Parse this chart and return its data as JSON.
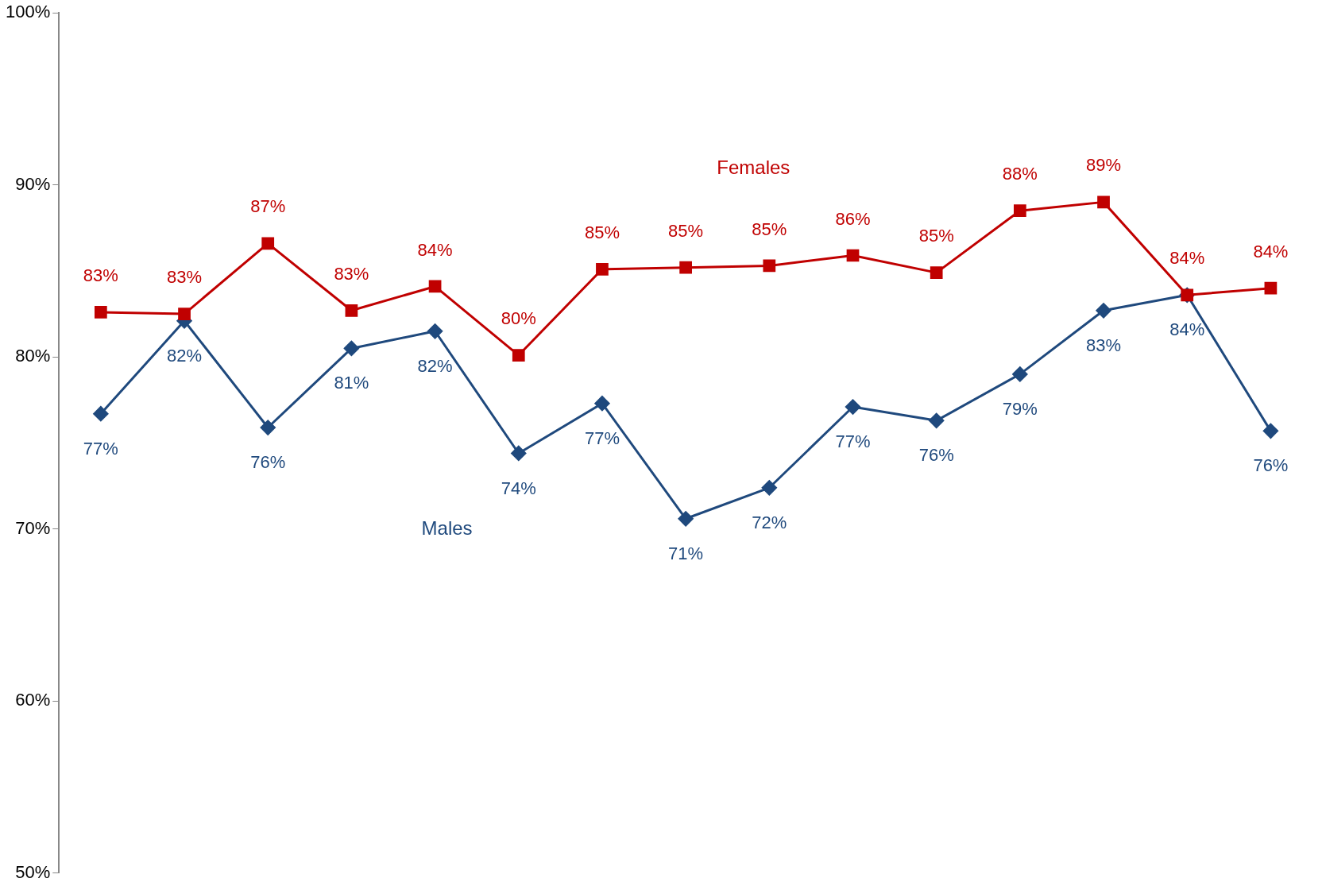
{
  "chart_data": {
    "type": "line",
    "categories": [
      null,
      null,
      null,
      null,
      null,
      null,
      null,
      null,
      null,
      null,
      null,
      null,
      null,
      null,
      null
    ],
    "series": [
      {
        "name": "Females",
        "color": "#c00000",
        "marker": "square",
        "values": [
          82.6,
          82.5,
          86.6,
          82.7,
          84.1,
          80.1,
          85.1,
          85.2,
          85.3,
          85.9,
          84.9,
          88.5,
          89.0,
          83.6,
          84.0
        ],
        "value_labels": [
          "83%",
          "83%",
          "87%",
          "83%",
          "84%",
          "80%",
          "85%",
          "85%",
          "85%",
          "86%",
          "85%",
          "88%",
          "89%",
          "84%",
          "84%"
        ]
      },
      {
        "name": "Males",
        "color": "#1f497d",
        "marker": "diamond",
        "values": [
          76.7,
          82.1,
          75.9,
          80.5,
          81.5,
          74.4,
          77.3,
          70.6,
          72.4,
          77.1,
          76.3,
          79.0,
          82.7,
          83.6,
          75.7
        ],
        "value_labels": [
          "77%",
          "82%",
          "76%",
          "81%",
          "82%",
          "74%",
          "77%",
          "71%",
          "72%",
          "77%",
          "76%",
          "79%",
          "83%",
          "84%",
          "76%"
        ]
      }
    ],
    "ylim": [
      50,
      100
    ],
    "yticks": [
      {
        "value": 50,
        "label": "50%"
      },
      {
        "value": 60,
        "label": "60%"
      },
      {
        "value": 70,
        "label": "70%"
      },
      {
        "value": 80,
        "label": "80%"
      },
      {
        "value": 90,
        "label": "90%"
      },
      {
        "value": 100,
        "label": "100%"
      }
    ],
    "grid": false,
    "legend": false,
    "line_style": "solid"
  }
}
